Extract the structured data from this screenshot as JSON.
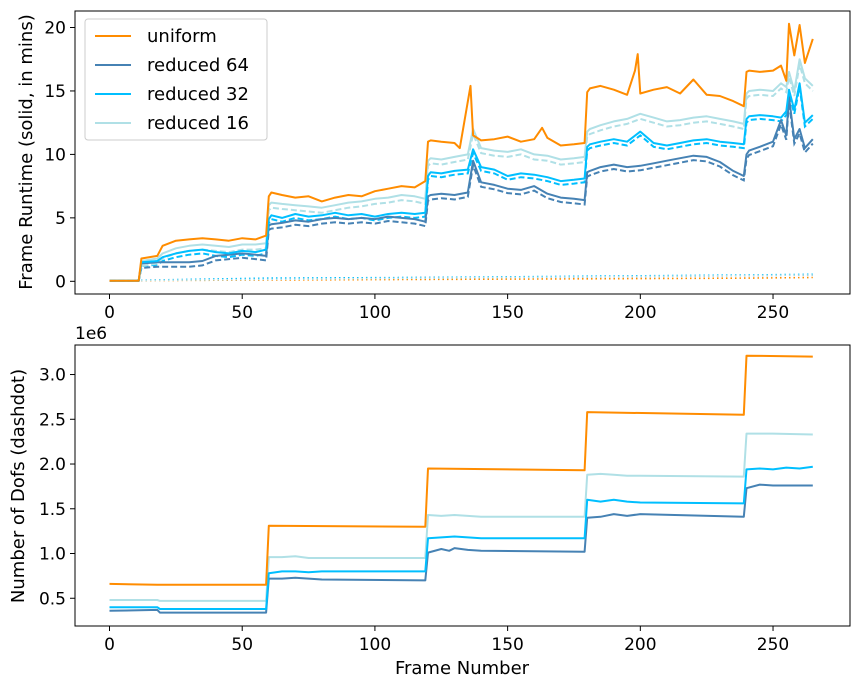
{
  "colors": {
    "uniform": "#FF8C00",
    "reduced64": "#4682B4",
    "reduced32": "#00BFFF",
    "reduced16": "#B0E0E6"
  },
  "chart_data": [
    {
      "type": "line",
      "xlabel": "",
      "ylabel": "Frame Runtime (solid, in mins)",
      "xlim": [
        -13,
        279
      ],
      "ylim": [
        -1.0,
        21.3
      ],
      "xticks": [
        0,
        50,
        100,
        150,
        200,
        250
      ],
      "yticks": [
        0,
        5,
        10,
        15,
        20
      ],
      "grid": false,
      "legend_position": "top-left",
      "series": [
        {
          "name": "uniform",
          "color": "#FF8C00",
          "x": [
            0,
            11,
            12,
            18,
            20,
            25,
            30,
            35,
            40,
            45,
            50,
            55,
            59,
            60,
            61,
            65,
            70,
            75,
            80,
            85,
            90,
            95,
            100,
            105,
            110,
            115,
            119,
            120,
            121,
            125,
            130,
            132,
            136,
            137,
            140,
            145,
            150,
            155,
            160,
            163,
            165,
            170,
            175,
            179,
            180,
            181,
            185,
            190,
            195,
            198,
            199,
            200,
            205,
            210,
            215,
            220,
            225,
            230,
            235,
            239,
            240,
            241,
            245,
            250,
            253,
            255,
            256,
            258,
            260,
            262,
            265
          ],
          "y": [
            0.05,
            0.05,
            1.8,
            2.0,
            2.8,
            3.2,
            3.3,
            3.4,
            3.3,
            3.2,
            3.4,
            3.3,
            3.6,
            6.7,
            7.0,
            6.8,
            6.6,
            6.7,
            6.3,
            6.6,
            6.8,
            6.7,
            7.1,
            7.3,
            7.5,
            7.4,
            7.9,
            11.0,
            11.1,
            11.0,
            10.9,
            10.5,
            15.4,
            11.5,
            11.1,
            11.2,
            11.4,
            11.0,
            11.2,
            12.1,
            11.3,
            10.7,
            10.8,
            10.9,
            14.9,
            15.2,
            15.4,
            15.1,
            14.7,
            16.6,
            17.9,
            14.8,
            15.1,
            15.3,
            14.8,
            15.9,
            14.7,
            14.6,
            14.2,
            13.8,
            16.5,
            16.6,
            16.5,
            16.6,
            17.0,
            15.8,
            20.3,
            17.8,
            20.2,
            17.2,
            19.1
          ]
        },
        {
          "name": "reduced 64",
          "color": "#4682B4",
          "x": [
            0,
            11,
            12,
            18,
            20,
            25,
            30,
            35,
            40,
            45,
            50,
            55,
            59,
            60,
            61,
            65,
            70,
            75,
            80,
            85,
            90,
            95,
            100,
            105,
            110,
            115,
            119,
            120,
            121,
            125,
            130,
            135,
            137,
            140,
            145,
            150,
            155,
            160,
            165,
            170,
            175,
            179,
            180,
            181,
            185,
            190,
            195,
            200,
            205,
            210,
            215,
            220,
            225,
            230,
            235,
            239,
            240,
            241,
            245,
            250,
            253,
            255,
            256,
            258,
            260,
            262,
            265
          ],
          "y": [
            0.05,
            0.05,
            1.4,
            1.5,
            1.5,
            1.5,
            1.5,
            1.6,
            2.0,
            2.1,
            2.2,
            2.1,
            2.0,
            4.4,
            4.5,
            4.6,
            4.8,
            4.7,
            4.9,
            5.0,
            4.9,
            5.0,
            4.9,
            5.1,
            5.0,
            4.9,
            4.7,
            6.7,
            6.8,
            6.9,
            6.8,
            7.0,
            9.5,
            7.8,
            7.6,
            7.3,
            7.2,
            7.5,
            6.9,
            6.6,
            6.5,
            6.4,
            8.6,
            8.7,
            9.0,
            9.2,
            9.0,
            9.1,
            9.3,
            9.5,
            9.7,
            9.9,
            9.8,
            9.4,
            8.7,
            8.3,
            10.0,
            10.3,
            10.6,
            11.0,
            12.7,
            11.5,
            14.5,
            11.2,
            12.0,
            10.5,
            11.2
          ]
        },
        {
          "name": "reduced 32",
          "color": "#00BFFF",
          "x": [
            0,
            11,
            12,
            18,
            20,
            25,
            30,
            35,
            40,
            45,
            50,
            55,
            59,
            60,
            61,
            65,
            70,
            75,
            80,
            85,
            90,
            95,
            100,
            105,
            110,
            115,
            119,
            120,
            121,
            125,
            130,
            135,
            137,
            140,
            145,
            150,
            155,
            160,
            165,
            170,
            175,
            179,
            180,
            181,
            185,
            190,
            195,
            200,
            205,
            210,
            215,
            220,
            225,
            230,
            235,
            239,
            240,
            241,
            245,
            250,
            253,
            255,
            256,
            258,
            260,
            262,
            265
          ],
          "y": [
            0.05,
            0.05,
            1.5,
            1.6,
            1.9,
            2.2,
            2.4,
            2.5,
            2.3,
            2.2,
            2.4,
            2.3,
            2.5,
            4.9,
            5.2,
            5.0,
            5.3,
            5.1,
            5.2,
            5.4,
            5.2,
            5.3,
            5.1,
            5.3,
            5.4,
            5.3,
            5.4,
            8.3,
            8.6,
            8.5,
            8.7,
            8.8,
            10.4,
            9.0,
            8.8,
            8.3,
            8.5,
            8.4,
            8.2,
            7.9,
            8.0,
            8.1,
            10.6,
            10.8,
            11.0,
            11.2,
            11.0,
            11.8,
            10.9,
            10.7,
            10.9,
            11.1,
            11.2,
            11.0,
            10.9,
            10.8,
            12.8,
            13.0,
            13.1,
            13.0,
            12.9,
            13.4,
            15.1,
            13.5,
            15.6,
            12.5,
            13.1
          ]
        },
        {
          "name": "reduced 16",
          "color": "#B0E0E6",
          "x": [
            0,
            11,
            12,
            18,
            20,
            25,
            30,
            35,
            40,
            45,
            50,
            55,
            59,
            60,
            61,
            65,
            70,
            75,
            80,
            85,
            90,
            95,
            100,
            105,
            110,
            115,
            119,
            120,
            121,
            125,
            130,
            135,
            137,
            140,
            145,
            150,
            155,
            160,
            165,
            170,
            175,
            179,
            180,
            181,
            185,
            190,
            195,
            200,
            205,
            210,
            215,
            220,
            225,
            230,
            235,
            239,
            240,
            241,
            245,
            250,
            253,
            255,
            256,
            258,
            260,
            262,
            265
          ],
          "y": [
            0.05,
            0.05,
            1.6,
            1.8,
            2.2,
            2.6,
            2.8,
            2.9,
            2.8,
            2.7,
            2.9,
            2.9,
            3.0,
            6.0,
            6.2,
            6.1,
            6.0,
            5.9,
            5.8,
            6.0,
            6.2,
            6.3,
            6.5,
            6.6,
            6.8,
            6.7,
            6.5,
            9.5,
            9.7,
            9.6,
            9.8,
            10.0,
            12.0,
            10.5,
            10.3,
            10.2,
            10.4,
            10.0,
            9.9,
            9.6,
            9.7,
            9.8,
            11.8,
            12.0,
            12.3,
            12.6,
            12.8,
            13.2,
            12.9,
            12.6,
            12.7,
            12.9,
            13.0,
            12.8,
            12.6,
            12.4,
            14.8,
            15.0,
            15.1,
            15.0,
            15.6,
            15.3,
            16.5,
            15.0,
            17.5,
            16.0,
            15.4
          ]
        }
      ],
      "dashed_series": [
        {
          "name": "reduced 64",
          "color": "#4682B4",
          "offset": -0.35
        },
        {
          "name": "reduced 32",
          "color": "#00BFFF",
          "offset": -0.3
        },
        {
          "name": "reduced 16",
          "color": "#B0E0E6",
          "offset": -0.4
        }
      ],
      "dotted_baseline": [
        {
          "color": "#FF8C00",
          "x": [
            0,
            60,
            120,
            180,
            240,
            265
          ],
          "y": [
            0.05,
            0.1,
            0.15,
            0.2,
            0.25,
            0.3
          ]
        },
        {
          "color": "#4682B4",
          "x": [
            0,
            60,
            120,
            180,
            240,
            265
          ],
          "y": [
            0.05,
            0.2,
            0.3,
            0.35,
            0.45,
            0.5
          ]
        },
        {
          "color": "#00BFFF",
          "x": [
            0,
            60,
            120,
            180,
            240,
            265
          ],
          "y": [
            0.05,
            0.25,
            0.3,
            0.4,
            0.5,
            0.55
          ]
        },
        {
          "color": "#B0E0E6",
          "x": [
            0,
            60,
            120,
            180,
            240,
            265
          ],
          "y": [
            0.05,
            0.15,
            0.25,
            0.35,
            0.45,
            0.5
          ]
        }
      ]
    },
    {
      "type": "line",
      "xlabel": "Frame Number",
      "ylabel": "Number of Dofs (dashdot)",
      "y_offset_label": "1e6",
      "xlim": [
        -13,
        279
      ],
      "ylim": [
        0.19,
        3.33
      ],
      "xticks": [
        0,
        50,
        100,
        150,
        200,
        250
      ],
      "yticks": [
        0.5,
        1.0,
        1.5,
        2.0,
        2.5,
        3.0
      ],
      "ytick_labels": [
        "0.5",
        "1.0",
        "1.5",
        "2.0",
        "2.5",
        "3.0"
      ],
      "xtick_labels": [
        "0",
        "50",
        "100",
        "150",
        "200",
        "250"
      ],
      "grid": false,
      "series": [
        {
          "name": "uniform",
          "color": "#FF8C00",
          "x": [
            0,
            18,
            59,
            60,
            119,
            120,
            179,
            180,
            239,
            240,
            265
          ],
          "y": [
            0.66,
            0.65,
            0.65,
            1.31,
            1.3,
            1.95,
            1.93,
            2.58,
            2.55,
            3.21,
            3.2
          ]
        },
        {
          "name": "reduced 64",
          "color": "#4682B4",
          "x": [
            0,
            18,
            19,
            59,
            60,
            65,
            70,
            75,
            80,
            119,
            120,
            125,
            128,
            130,
            135,
            140,
            179,
            180,
            185,
            190,
            195,
            200,
            239,
            240,
            245,
            250,
            255,
            265
          ],
          "y": [
            0.36,
            0.37,
            0.34,
            0.34,
            0.72,
            0.72,
            0.73,
            0.72,
            0.71,
            0.7,
            1.01,
            1.05,
            1.03,
            1.06,
            1.04,
            1.03,
            1.02,
            1.4,
            1.41,
            1.44,
            1.42,
            1.44,
            1.41,
            1.73,
            1.77,
            1.76,
            1.76,
            1.76
          ]
        },
        {
          "name": "reduced 32",
          "color": "#00BFFF",
          "x": [
            0,
            18,
            19,
            59,
            60,
            65,
            70,
            75,
            80,
            119,
            120,
            125,
            130,
            135,
            140,
            179,
            180,
            185,
            190,
            195,
            200,
            239,
            240,
            245,
            250,
            255,
            260,
            265
          ],
          "y": [
            0.4,
            0.4,
            0.38,
            0.38,
            0.78,
            0.8,
            0.8,
            0.79,
            0.8,
            0.8,
            1.17,
            1.18,
            1.19,
            1.18,
            1.17,
            1.17,
            1.6,
            1.58,
            1.6,
            1.58,
            1.57,
            1.56,
            1.94,
            1.95,
            1.94,
            1.96,
            1.95,
            1.97
          ]
        },
        {
          "name": "reduced 16",
          "color": "#B0E0E6",
          "x": [
            0,
            18,
            19,
            59,
            60,
            65,
            70,
            75,
            80,
            119,
            120,
            125,
            130,
            135,
            140,
            179,
            180,
            185,
            190,
            195,
            200,
            239,
            240,
            245,
            250,
            265
          ],
          "y": [
            0.48,
            0.48,
            0.47,
            0.47,
            0.96,
            0.96,
            0.97,
            0.95,
            0.95,
            0.95,
            1.43,
            1.42,
            1.43,
            1.42,
            1.41,
            1.41,
            1.88,
            1.89,
            1.88,
            1.87,
            1.87,
            1.86,
            2.34,
            2.34,
            2.34,
            2.33
          ]
        }
      ]
    }
  ],
  "top": {
    "ylabel": "Frame Runtime (solid, in mins)",
    "xtick_labels": [
      "0",
      "50",
      "100",
      "150",
      "200",
      "250"
    ],
    "ytick_labels": [
      "0",
      "5",
      "10",
      "15",
      "20"
    ],
    "legend": [
      "uniform",
      "reduced 64",
      "reduced 32",
      "reduced 16"
    ]
  },
  "bottom": {
    "ylabel": "Number of Dofs (dashdot)",
    "xlabel": "Frame Number",
    "offset": "1e6",
    "xtick_labels": [
      "0",
      "50",
      "100",
      "150",
      "200",
      "250"
    ],
    "ytick_labels": [
      "0.5",
      "1.0",
      "1.5",
      "2.0",
      "2.5",
      "3.0"
    ]
  }
}
